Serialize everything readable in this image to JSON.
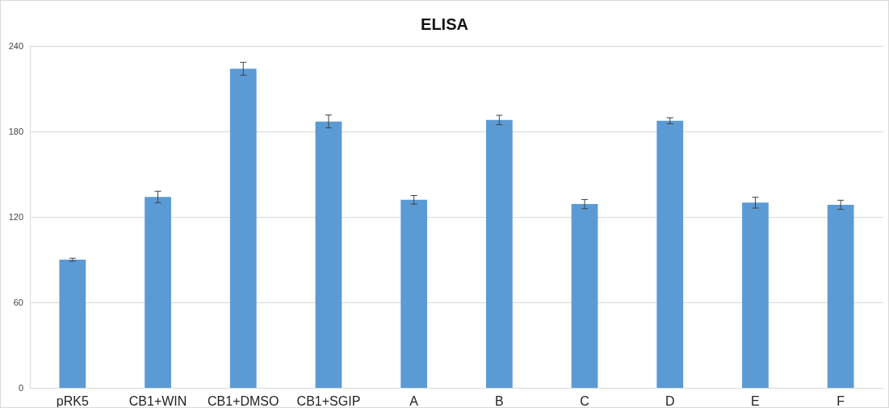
{
  "chart_data": {
    "type": "bar",
    "title": "ELISA",
    "categories": [
      "pRK5",
      "CB1+WIN",
      "CB1+DMSO",
      "CB1+SGIP",
      "A",
      "B",
      "C",
      "D",
      "E",
      "F"
    ],
    "values": [
      90,
      134,
      224,
      187,
      132,
      188,
      129,
      187.5,
      130,
      128.5
    ],
    "errors": [
      1,
      4,
      4.5,
      4.5,
      3,
      3.3,
      3.2,
      2.1,
      3.8,
      3.2
    ],
    "color": "#5b9bd5",
    "ylim": [
      0,
      240
    ],
    "yticks": [
      0,
      60,
      120,
      180,
      240
    ],
    "grid": "y"
  }
}
